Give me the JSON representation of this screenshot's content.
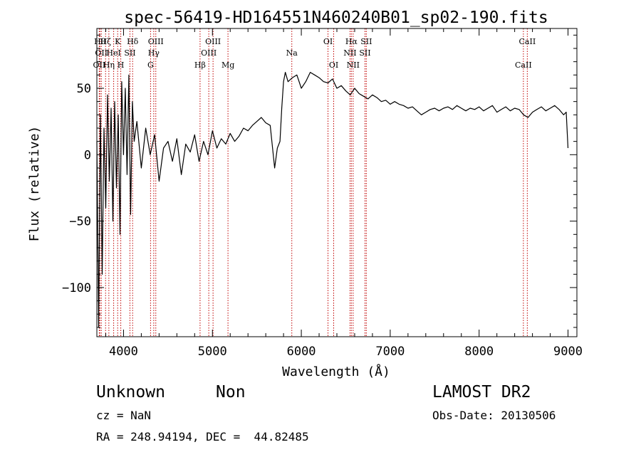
{
  "chart_data": {
    "type": "line",
    "title": "spec-56419-HD164551N460240B01_sp02-190.fits",
    "xlabel": "Wavelength (Å)",
    "ylabel": "Flux (relative)",
    "xlim": [
      3700,
      9100
    ],
    "ylim": [
      -137,
      95
    ],
    "x_ticks": [
      4000,
      5000,
      6000,
      7000,
      8000,
      9000
    ],
    "y_ticks": [
      -100,
      -50,
      0,
      50
    ],
    "grid": false,
    "series": [
      {
        "x": [
          3700,
          3720,
          3740,
          3760,
          3780,
          3800,
          3820,
          3840,
          3860,
          3880,
          3900,
          3920,
          3940,
          3960,
          3980,
          4000,
          4020,
          4040,
          4060,
          4080,
          4100,
          4120,
          4150,
          4200,
          4250,
          4300,
          4350,
          4400,
          4450,
          4500,
          4550,
          4600,
          4650,
          4700,
          4750,
          4800,
          4850,
          4900,
          4950,
          5000,
          5050,
          5100,
          5150,
          5200,
          5250,
          5300,
          5350,
          5400,
          5450,
          5500,
          5550,
          5600,
          5650,
          5700,
          5730,
          5760,
          5780,
          5800,
          5820,
          5850,
          5900,
          5950,
          6000,
          6050,
          6100,
          6150,
          6200,
          6250,
          6300,
          6350,
          6400,
          6450,
          6500,
          6550,
          6600,
          6650,
          6700,
          6750,
          6800,
          6850,
          6900,
          6950,
          7000,
          7050,
          7100,
          7150,
          7200,
          7250,
          7300,
          7350,
          7400,
          7450,
          7500,
          7550,
          7600,
          7650,
          7700,
          7750,
          7800,
          7850,
          7900,
          7950,
          8000,
          8050,
          8100,
          8150,
          8200,
          8250,
          8300,
          8350,
          8400,
          8450,
          8500,
          8550,
          8600,
          8650,
          8700,
          8750,
          8800,
          8850,
          8900,
          8950,
          8980,
          9000
        ],
        "y": [
          10,
          -130,
          30,
          -90,
          20,
          -40,
          45,
          -20,
          35,
          -50,
          40,
          -25,
          30,
          -60,
          55,
          0,
          50,
          -15,
          60,
          -45,
          40,
          10,
          25,
          -10,
          20,
          0,
          15,
          -20,
          5,
          10,
          -5,
          12,
          -15,
          8,
          2,
          15,
          -5,
          10,
          0,
          18,
          5,
          12,
          8,
          16,
          10,
          14,
          20,
          18,
          22,
          25,
          28,
          24,
          22,
          -10,
          5,
          10,
          35,
          55,
          62,
          55,
          58,
          60,
          50,
          55,
          62,
          60,
          58,
          55,
          54,
          57,
          50,
          52,
          48,
          45,
          50,
          46,
          44,
          42,
          45,
          43,
          40,
          41,
          38,
          40,
          38,
          37,
          35,
          36,
          33,
          30,
          32,
          34,
          35,
          33,
          35,
          36,
          34,
          37,
          35,
          33,
          35,
          34,
          36,
          33,
          35,
          37,
          32,
          34,
          36,
          33,
          35,
          34,
          30,
          28,
          32,
          34,
          36,
          33,
          35,
          37,
          34,
          30,
          32,
          5
        ]
      }
    ],
    "line_markers": [
      {
        "x": 3727,
        "label": "OII",
        "row": 2
      },
      {
        "x": 3734,
        "label": "Hθ",
        "row": 0
      },
      {
        "x": 3750,
        "label": "OII",
        "row": 1
      },
      {
        "x": 3798,
        "label": "Hζ",
        "row": 0
      },
      {
        "x": 3835,
        "label": "Hη",
        "row": 2
      },
      {
        "x": 3889,
        "label": "HeI",
        "row": 1
      },
      {
        "x": 3934,
        "label": "K",
        "row": 0
      },
      {
        "x": 3969,
        "label": "H",
        "row": 2
      },
      {
        "x": 4072,
        "label": "SII",
        "row": 1
      },
      {
        "x": 4102,
        "label": "Hδ",
        "row": 0
      },
      {
        "x": 4304,
        "label": "G",
        "row": 2
      },
      {
        "x": 4340,
        "label": "Hγ",
        "row": 1
      },
      {
        "x": 4363,
        "label": "OIII",
        "row": 0
      },
      {
        "x": 4861,
        "label": "Hβ",
        "row": 2
      },
      {
        "x": 4959,
        "label": "OIII",
        "row": 1
      },
      {
        "x": 5007,
        "label": "OIII",
        "row": 0
      },
      {
        "x": 5175,
        "label": "Mg",
        "row": 2
      },
      {
        "x": 5893,
        "label": "Na",
        "row": 1
      },
      {
        "x": 6300,
        "label": "OI",
        "row": 0
      },
      {
        "x": 6364,
        "label": "OI",
        "row": 2
      },
      {
        "x": 6548,
        "label": "NII",
        "row": 1
      },
      {
        "x": 6563,
        "label": "Hα",
        "row": 0
      },
      {
        "x": 6583,
        "label": "NII",
        "row": 2
      },
      {
        "x": 6716,
        "label": "SII",
        "row": 1
      },
      {
        "x": 6731,
        "label": "SII",
        "row": 0
      },
      {
        "x": 8498,
        "label": "CaII",
        "row": 2
      },
      {
        "x": 8542,
        "label": "CaII",
        "row": 0
      }
    ]
  },
  "footer": {
    "class_label": "Unknown",
    "subclass_label": "Non",
    "survey": "LAMOST DR2",
    "cz_text": "cz = NaN",
    "obs_date_text": "Obs-Date: 20130506",
    "coords_text": "RA = 248.94194, DEC =  44.82485"
  }
}
